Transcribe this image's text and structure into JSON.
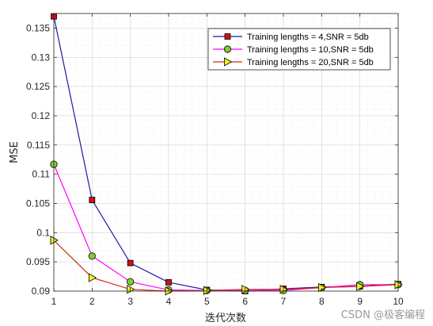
{
  "chart_data": {
    "type": "line",
    "title": "",
    "xlabel": "迭代次数",
    "ylabel": "MSE",
    "x": [
      1,
      2,
      3,
      4,
      5,
      6,
      7,
      8,
      9,
      10
    ],
    "xlim": [
      1,
      10
    ],
    "ylim": [
      0.09,
      0.1375
    ],
    "xticks": [
      "1",
      "2",
      "3",
      "4",
      "5",
      "6",
      "7",
      "8",
      "9",
      "10"
    ],
    "yticks": [
      0.09,
      0.095,
      0.1,
      0.105,
      0.11,
      0.115,
      0.12,
      0.125,
      0.13,
      0.135
    ],
    "ytick_labels": [
      "0.09",
      "0.095",
      "0.1",
      "0.105",
      "0.11",
      "0.115",
      "0.12",
      "0.125",
      "0.13",
      "0.135"
    ],
    "grid": true,
    "minor_grid": true,
    "legend_position": "top-right",
    "series": [
      {
        "name": "Training lengths = 4,SNR = 5db",
        "color": "#1a1aaa",
        "marker": "square",
        "marker_color": "#d01010",
        "values": [
          0.137,
          0.1056,
          0.0948,
          0.0915,
          0.0902,
          0.09,
          0.0904,
          0.0907,
          0.0908,
          0.0912
        ]
      },
      {
        "name": "Training lengths = 10,SNR = 5db",
        "color": "#ff00ff",
        "marker": "circle",
        "marker_color": "#7cd02a",
        "values": [
          0.1117,
          0.096,
          0.0916,
          0.0902,
          0.0901,
          0.0901,
          0.0901,
          0.0906,
          0.0911,
          0.0911
        ]
      },
      {
        "name": "Training lengths = 20,SNR = 5db",
        "color": "#d42a1a",
        "marker": "triangle-right",
        "marker_color": "#f0f020",
        "values": [
          0.0987,
          0.0923,
          0.0903,
          0.09,
          0.0901,
          0.0903,
          0.0903,
          0.0906,
          0.0908,
          0.0911
        ]
      }
    ]
  },
  "watermark": "CSDN @极客编程"
}
